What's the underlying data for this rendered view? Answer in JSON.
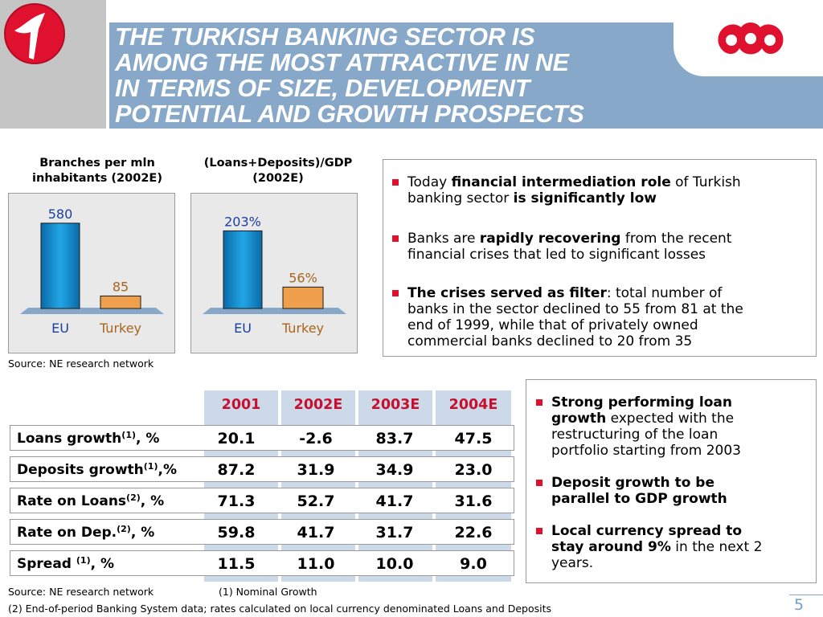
{
  "header": {
    "title_lines": [
      "THE TURKISH BANKING SECTOR IS",
      "AMONG THE MOST ATTRACTIVE IN NE",
      "IN TERMS OF SIZE, DEVELOPMENT",
      "POTENTIAL AND GROWTH PROSPECTS"
    ],
    "left_logo": "red-swoosh-logo",
    "right_logo": "koc-logo",
    "colors": {
      "bar": "#87a8c8",
      "logo_red": "#e0102f"
    }
  },
  "chart_data": [
    {
      "type": "bar",
      "title_lines": [
        "Branches per mln",
        "inhabitants (2002E)"
      ],
      "categories": [
        "EU",
        "Turkey"
      ],
      "values": [
        580,
        85
      ],
      "data_labels": [
        "580",
        "85"
      ],
      "ylim": [
        0,
        650
      ],
      "colors": [
        "#0f86c9",
        "#f0a04c"
      ]
    },
    {
      "type": "bar",
      "title_lines": [
        "(Loans+Deposits)/GDP",
        "(2002E)"
      ],
      "categories": [
        "EU",
        "Turkey"
      ],
      "values": [
        203,
        56
      ],
      "data_labels": [
        "203%",
        "56%"
      ],
      "ylim": [
        0,
        250
      ],
      "colors": [
        "#0f86c9",
        "#f0a04c"
      ]
    }
  ],
  "source_top": "Source: NE research network",
  "bullets_top": [
    {
      "parts": [
        {
          "t": "Today ",
          "b": false
        },
        {
          "t": "financial intermediation role",
          "b": true
        },
        {
          "t": " of Turkish",
          "b": false
        }
      ],
      "line2": [
        {
          "t": "banking sector ",
          "b": false
        },
        {
          "t": "is significantly low",
          "b": true
        }
      ]
    },
    {
      "parts": [
        {
          "t": "Banks are ",
          "b": false
        },
        {
          "t": "rapidly recovering",
          "b": true
        },
        {
          "t": " from the recent",
          "b": false
        }
      ],
      "line2": [
        {
          "t": "financial crises that led to significant losses",
          "b": false
        }
      ]
    },
    {
      "parts": [
        {
          "t": "The crises served as filter",
          "b": true
        },
        {
          "t": ": total number of",
          "b": false
        }
      ],
      "line2": [
        {
          "t": "banks in the sector declined to 55 from 81 at the",
          "b": false
        }
      ],
      "line3": [
        {
          "t": "end of 1999, while  that of privately owned",
          "b": false
        }
      ],
      "line4": [
        {
          "t": "commercial banks declined to 20 from 35",
          "b": false
        }
      ]
    }
  ],
  "table": {
    "years": [
      "2001",
      "2002E",
      "2003E",
      "2004E"
    ],
    "rows": [
      {
        "label": "Loans growth",
        "sup": "(1)",
        "suffix": ", %",
        "values": [
          "20.1",
          "-2.6",
          "83.7",
          "47.5"
        ]
      },
      {
        "label": "Deposits growth",
        "sup": "(1)",
        "suffix": ",%",
        "values": [
          "87.2",
          "31.9",
          "34.9",
          "23.0"
        ]
      },
      {
        "label": "Rate on Loans",
        "sup": "(2)",
        "suffix": ", %",
        "values": [
          "71.3",
          "52.7",
          "41.7",
          "31.6"
        ]
      },
      {
        "label": "Rate on Dep.",
        "sup": "(2)",
        "suffix": ", %",
        "values": [
          "59.8",
          "41.7",
          "31.7",
          "22.6"
        ]
      },
      {
        "label": "Spread ",
        "sup": "(1)",
        "suffix": ", %",
        "values": [
          "11.5",
          "11.0",
          "10.0",
          "9.0"
        ]
      }
    ]
  },
  "bullets_bottom": [
    {
      "lines": [
        [
          {
            "t": "Strong performing loan",
            "b": true
          }
        ],
        [
          {
            "t": "growth",
            "b": true
          },
          {
            "t": " expected with the",
            "b": false
          }
        ],
        [
          {
            "t": "restructuring of the loan",
            "b": false
          }
        ],
        [
          {
            "t": "portfolio starting from 2003",
            "b": false
          }
        ]
      ]
    },
    {
      "lines": [
        [
          {
            "t": "Deposit growth to be",
            "b": true
          }
        ],
        [
          {
            "t": "parallel to GDP growth",
            "b": true
          }
        ]
      ]
    },
    {
      "lines": [
        [
          {
            "t": "Local currency spread to",
            "b": true
          }
        ],
        [
          {
            "t": "stay around 9%",
            "b": true
          },
          {
            "t": " in the next 2",
            "b": false
          }
        ],
        [
          {
            "t": "years.",
            "b": false
          }
        ]
      ]
    }
  ],
  "footnotes": {
    "source": "Source: NE research network",
    "note1": "(1) Nominal Growth",
    "note2": "(2) End-of-period Banking System data; rates calculated on local currency denominated Loans and Deposits"
  },
  "page_number": "5"
}
